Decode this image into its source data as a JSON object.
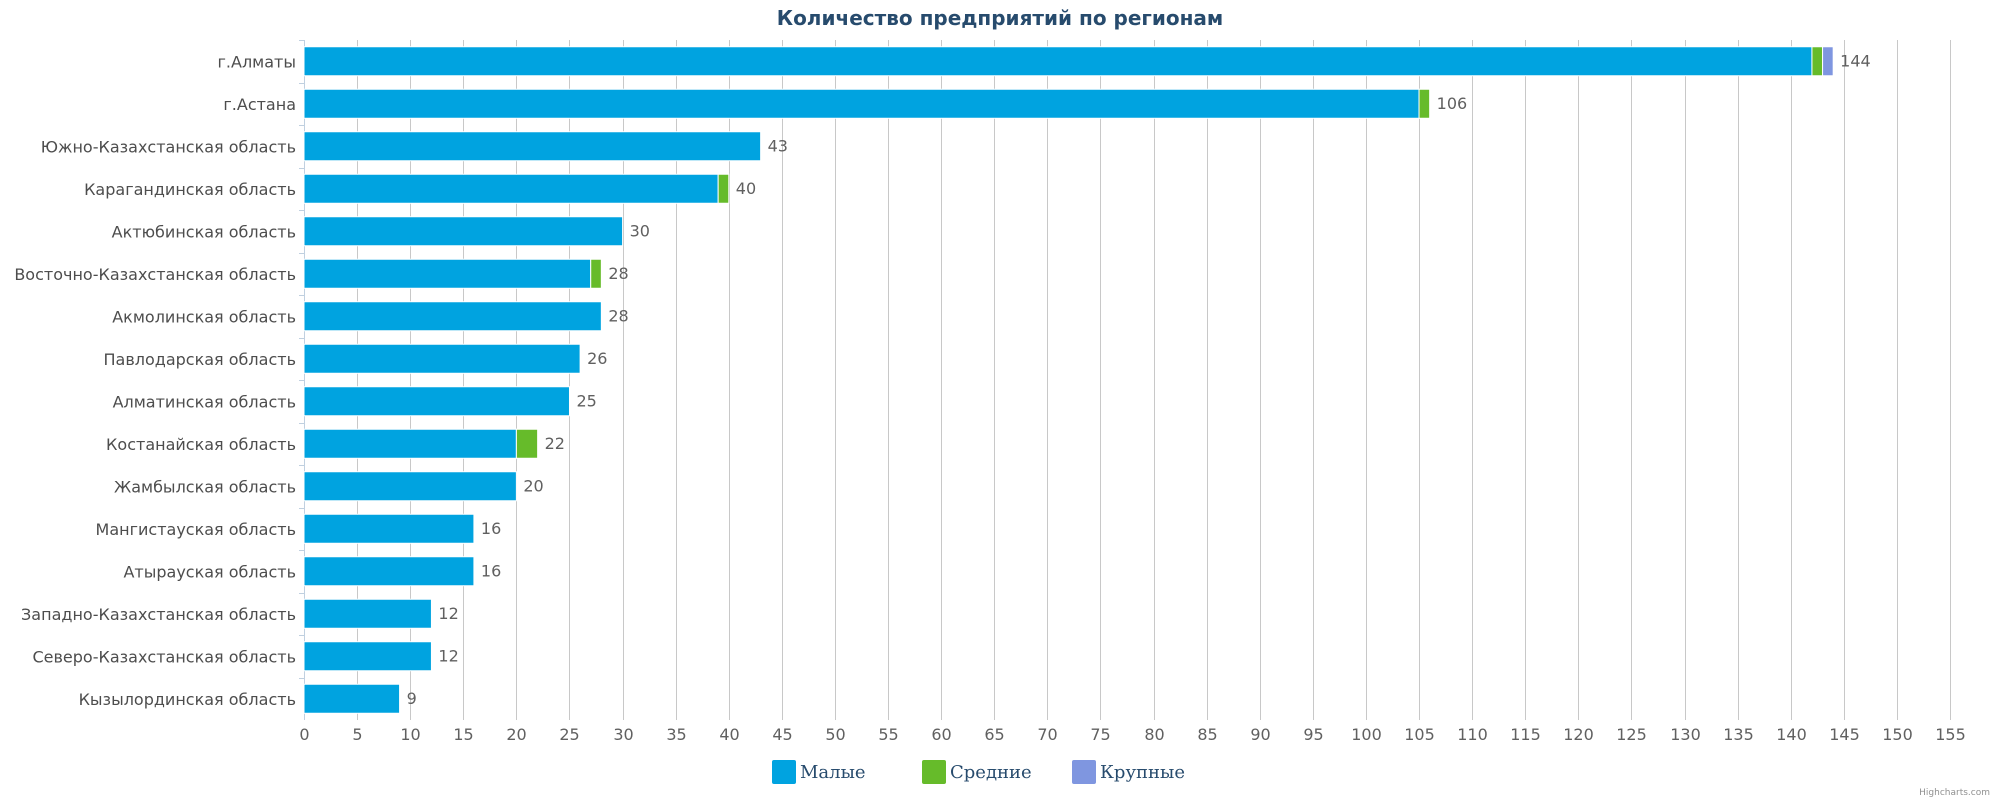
{
  "chart_data": {
    "type": "bar",
    "orientation": "horizontal",
    "stacked": true,
    "title": "Количество предприятий по регионам",
    "categories": [
      "г.Алматы",
      "г.Астана",
      "Южно-Казахстанская область",
      "Карагандинская область",
      "Актюбинская область",
      "Восточно-Казахстанская область",
      "Акмолинская область",
      "Павлодарская область",
      "Алматинская область",
      "Костанайская область",
      "Жамбылская область",
      "Мангистауская область",
      "Атырауская область",
      "Западно-Казахстанская область",
      "Северо-Казахстанская область",
      "Кызылординская область"
    ],
    "series": [
      {
        "name": "Малые",
        "color": "#00a3e0",
        "values": [
          142,
          105,
          43,
          39,
          30,
          27,
          28,
          26,
          25,
          20,
          20,
          16,
          16,
          12,
          12,
          9
        ]
      },
      {
        "name": "Средние",
        "color": "#66bb2a",
        "values": [
          1,
          1,
          0,
          1,
          0,
          1,
          0,
          0,
          0,
          2,
          0,
          0,
          0,
          0,
          0,
          0
        ]
      },
      {
        "name": "Крупные",
        "color": "#7f96e0",
        "values": [
          1,
          0,
          0,
          0,
          0,
          0,
          0,
          0,
          0,
          0,
          0,
          0,
          0,
          0,
          0,
          0
        ]
      }
    ],
    "totals": [
      144,
      106,
      43,
      40,
      30,
      28,
      28,
      26,
      25,
      22,
      20,
      16,
      16,
      12,
      12,
      9
    ],
    "xlim": [
      0,
      155
    ],
    "xticks": [
      0,
      5,
      10,
      15,
      20,
      25,
      30,
      35,
      40,
      45,
      50,
      55,
      60,
      65,
      70,
      75,
      80,
      85,
      90,
      95,
      100,
      105,
      110,
      115,
      120,
      125,
      130,
      135,
      140,
      145,
      150,
      155
    ],
    "grid": true,
    "legend_position": "bottom-center"
  },
  "credit": "Highcharts.com"
}
